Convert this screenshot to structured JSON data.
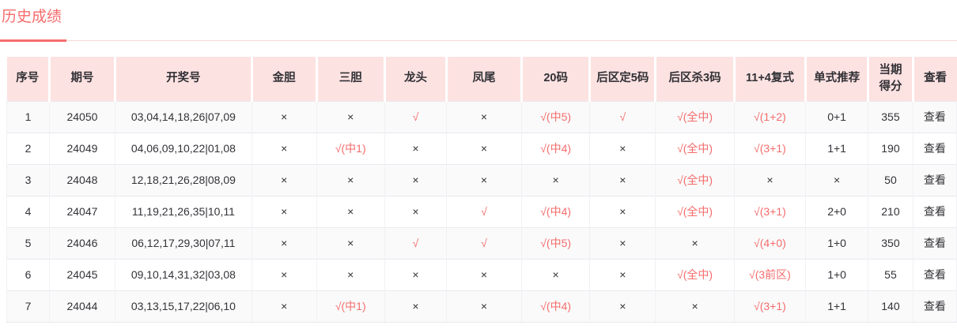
{
  "page": {
    "title": "历史成绩"
  },
  "colors": {
    "accent": "#f56c6c",
    "header_bg": "#fde2e2",
    "title_color": "#f56c6c",
    "stripe": "#fafafa"
  },
  "table": {
    "columns": [
      {
        "key": "seq",
        "label": "序号"
      },
      {
        "key": "issue",
        "label": "期号"
      },
      {
        "key": "draw-numbers",
        "label": "开奖号"
      },
      {
        "key": "gold-dan",
        "label": "金胆"
      },
      {
        "key": "three-dan",
        "label": "三胆"
      },
      {
        "key": "dragon-head",
        "label": "龙头"
      },
      {
        "key": "phoenix-tail",
        "label": "凤尾"
      },
      {
        "key": "codes-20",
        "label": "20码"
      },
      {
        "key": "back-fix-5",
        "label": "后区定5码"
      },
      {
        "key": "back-kill-3",
        "label": "后区杀3码"
      },
      {
        "key": "compound-11-4",
        "label": "11+4复式"
      },
      {
        "key": "single-rec",
        "label": "单式推荐"
      },
      {
        "key": "score",
        "label": "当期得分"
      },
      {
        "key": "view",
        "label": "查看"
      }
    ],
    "rows": [
      [
        {
          "t": "1"
        },
        {
          "t": "24050"
        },
        {
          "t": "03,04,14,18,26|07,09"
        },
        {
          "t": "×"
        },
        {
          "t": "×"
        },
        {
          "t": "√",
          "hit": true
        },
        {
          "t": "×"
        },
        {
          "t": "√(中5)",
          "hit": true
        },
        {
          "t": "√",
          "hit": true
        },
        {
          "t": "√(全中)",
          "hit": true
        },
        {
          "t": "√(1+2)",
          "hit": true
        },
        {
          "t": "0+1"
        },
        {
          "t": "355"
        },
        {
          "t": "查看",
          "link": true
        }
      ],
      [
        {
          "t": "2"
        },
        {
          "t": "24049"
        },
        {
          "t": "04,06,09,10,22|01,08"
        },
        {
          "t": "×"
        },
        {
          "t": "√(中1)",
          "hit": true
        },
        {
          "t": "×"
        },
        {
          "t": "×"
        },
        {
          "t": "√(中4)",
          "hit": true
        },
        {
          "t": "×"
        },
        {
          "t": "√(全中)",
          "hit": true
        },
        {
          "t": "√(3+1)",
          "hit": true
        },
        {
          "t": "1+1"
        },
        {
          "t": "190"
        },
        {
          "t": "查看",
          "link": true
        }
      ],
      [
        {
          "t": "3"
        },
        {
          "t": "24048"
        },
        {
          "t": "12,18,21,26,28|08,09"
        },
        {
          "t": "×"
        },
        {
          "t": "×"
        },
        {
          "t": "×"
        },
        {
          "t": "×"
        },
        {
          "t": "×"
        },
        {
          "t": "×"
        },
        {
          "t": "√(全中)",
          "hit": true
        },
        {
          "t": "×"
        },
        {
          "t": "×"
        },
        {
          "t": "50"
        },
        {
          "t": "查看",
          "link": true
        }
      ],
      [
        {
          "t": "4"
        },
        {
          "t": "24047"
        },
        {
          "t": "11,19,21,26,35|10,11"
        },
        {
          "t": "×"
        },
        {
          "t": "×"
        },
        {
          "t": "×"
        },
        {
          "t": "√",
          "hit": true
        },
        {
          "t": "√(中4)",
          "hit": true
        },
        {
          "t": "×"
        },
        {
          "t": "√(全中)",
          "hit": true
        },
        {
          "t": "√(3+1)",
          "hit": true
        },
        {
          "t": "2+0"
        },
        {
          "t": "210"
        },
        {
          "t": "查看",
          "link": true
        }
      ],
      [
        {
          "t": "5"
        },
        {
          "t": "24046"
        },
        {
          "t": "06,12,17,29,30|07,11"
        },
        {
          "t": "×"
        },
        {
          "t": "×"
        },
        {
          "t": "√",
          "hit": true
        },
        {
          "t": "√",
          "hit": true
        },
        {
          "t": "√(中5)",
          "hit": true
        },
        {
          "t": "×"
        },
        {
          "t": "×"
        },
        {
          "t": "√(4+0)",
          "hit": true
        },
        {
          "t": "1+0"
        },
        {
          "t": "350"
        },
        {
          "t": "查看",
          "link": true
        }
      ],
      [
        {
          "t": "6"
        },
        {
          "t": "24045"
        },
        {
          "t": "09,10,14,31,32|03,08"
        },
        {
          "t": "×"
        },
        {
          "t": "×"
        },
        {
          "t": "×"
        },
        {
          "t": "×"
        },
        {
          "t": "×"
        },
        {
          "t": "×"
        },
        {
          "t": "√(全中)",
          "hit": true
        },
        {
          "t": "√(3前区)",
          "hit": true
        },
        {
          "t": "1+0"
        },
        {
          "t": "55"
        },
        {
          "t": "查看",
          "link": true
        }
      ],
      [
        {
          "t": "7"
        },
        {
          "t": "24044"
        },
        {
          "t": "03,13,15,17,22|06,10"
        },
        {
          "t": "×"
        },
        {
          "t": "√(中1)",
          "hit": true
        },
        {
          "t": "×"
        },
        {
          "t": "×"
        },
        {
          "t": "√(中4)",
          "hit": true
        },
        {
          "t": "×"
        },
        {
          "t": "×"
        },
        {
          "t": "√(3+1)",
          "hit": true
        },
        {
          "t": "1+1"
        },
        {
          "t": "140"
        },
        {
          "t": "查看",
          "link": true
        }
      ]
    ]
  }
}
